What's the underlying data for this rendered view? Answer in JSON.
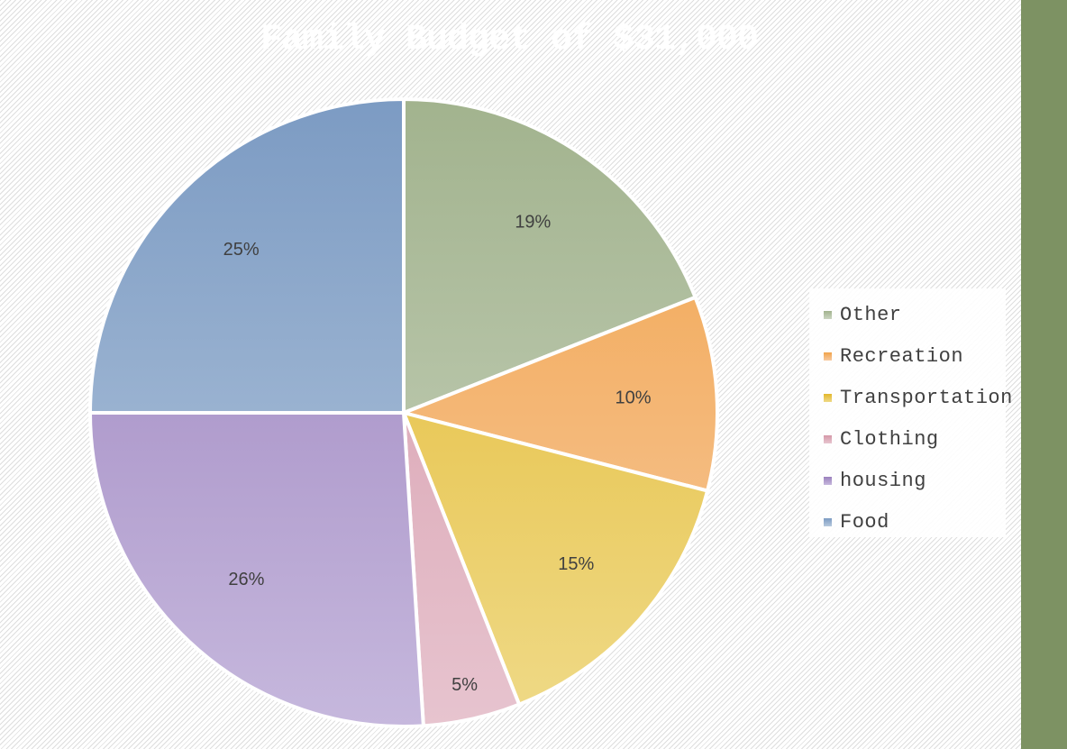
{
  "chart_data": {
    "type": "pie",
    "title": "Family Budget of $31,000",
    "slices": [
      {
        "label": "Other",
        "value": 19,
        "data_label": "19%",
        "color_top": "#a2b38e",
        "color_bottom": "#cbd5c1"
      },
      {
        "label": "Recreation",
        "value": 10,
        "data_label": "10%",
        "color_top": "#f1a34a",
        "color_bottom": "#f7caa0"
      },
      {
        "label": "Transportation",
        "value": 15,
        "data_label": "15%",
        "color_top": "#e3b72b",
        "color_bottom": "#efda88"
      },
      {
        "label": "Clothing",
        "value": 5,
        "data_label": "5%",
        "color_top": "#d597a8",
        "color_bottom": "#e7c4cf"
      },
      {
        "label": "housing",
        "value": 26,
        "data_label": "26%",
        "color_top": "#9a80bd",
        "color_bottom": "#c6b8dd"
      },
      {
        "label": "Food",
        "value": 25,
        "data_label": "25%",
        "color_top": "#7c9bc3",
        "color_bottom": "#b7c9de"
      }
    ],
    "start_angle_deg": 0,
    "direction": "clockwise",
    "legend_position": "right"
  },
  "theme": {
    "sidebar_color": "#7d9263",
    "title_color": "#ffffff"
  }
}
